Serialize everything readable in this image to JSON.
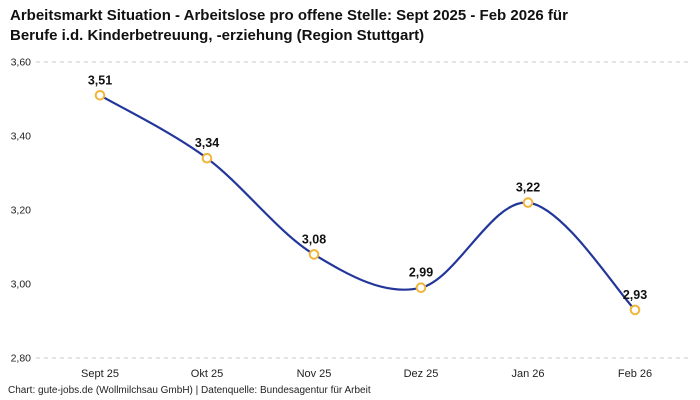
{
  "header": {
    "title_line1": "Arbeitsmarkt Situation - Arbeitslose pro offene Stelle: Sept 2025 - Feb 2026 für",
    "title_line2": "Berufe i.d. Kinderbetreuung, -erziehung (Region Stuttgart)"
  },
  "footer": {
    "text": "Chart: gute-jobs.de (Wollmilchsau GmbH) | Datenquelle: Bundesagentur für Arbeit"
  },
  "chart_data": {
    "type": "line",
    "title": "Arbeitsmarkt Situation - Arbeitslose pro offene Stelle: Sept 2025 - Feb 2026 für Berufe i.d. Kinderbetreuung, -erziehung (Region Stuttgart)",
    "categories": [
      "Sept 25",
      "Okt 25",
      "Nov 25",
      "Dez 25",
      "Jan 26",
      "Feb 26"
    ],
    "values": [
      3.51,
      3.34,
      3.08,
      2.99,
      3.22,
      2.93
    ],
    "value_labels": [
      "3,51",
      "3,34",
      "3,08",
      "2,99",
      "3,22",
      "2,93"
    ],
    "y_ticks": [
      {
        "label": "3,60",
        "value": 3.6
      },
      {
        "label": "3,40",
        "value": 3.4
      },
      {
        "label": "3,20",
        "value": 3.2
      },
      {
        "label": "3,00",
        "value": 3.0
      },
      {
        "label": "2,80",
        "value": 2.8
      }
    ],
    "ylim": [
      2.8,
      3.6
    ],
    "grid": "dashed-top-bottom-only",
    "legend": "none",
    "line_color": "#23379b",
    "marker_stroke_color": "#f0b63c",
    "marker_fill_color": "#ffffff",
    "label_color": "#111111",
    "axis_label_color": "#222222",
    "gridline_color": "#c9c9c9"
  }
}
